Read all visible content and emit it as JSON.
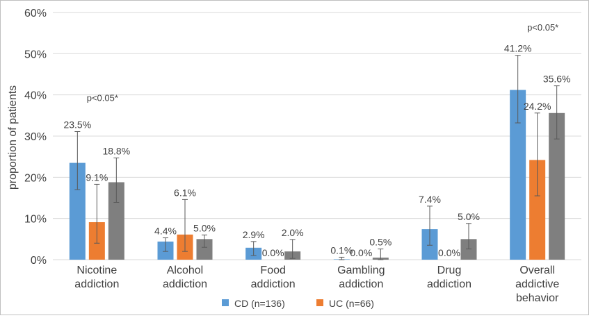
{
  "chart_data": {
    "type": "bar",
    "ylabel": "proportion of patients",
    "ylim": [
      0,
      60
    ],
    "y_ticks": [
      "0%",
      "10%",
      "20%",
      "30%",
      "40%",
      "50%",
      "60%"
    ],
    "y_tick_values": [
      0,
      10,
      20,
      30,
      40,
      50,
      60
    ],
    "grid": true,
    "categories": [
      [
        "Nicotine",
        "addiction"
      ],
      [
        "Alcohol",
        "addiction"
      ],
      [
        "Food",
        "addiction"
      ],
      [
        "Gambling",
        "addiction"
      ],
      [
        "Drug",
        "addiction"
      ],
      [
        "Overall",
        "addictive",
        "behavior"
      ]
    ],
    "series": [
      {
        "name": "CD (n=136)",
        "color": "#5b9bd5",
        "values": [
          23.5,
          4.4,
          2.9,
          0.1,
          7.4,
          41.2
        ],
        "labels": [
          "23.5%",
          "4.4%",
          "2.9%",
          "0.1%",
          "7.4%",
          "41.2%"
        ],
        "error_low": [
          17.0,
          2.0,
          1.0,
          0.0,
          3.5,
          33.2
        ],
        "error_high": [
          31.1,
          5.3,
          4.4,
          0.6,
          13.0,
          49.6
        ]
      },
      {
        "name": "UC (n=66)",
        "color": "#ed7d31",
        "values": [
          9.1,
          6.1,
          0.0,
          0.0,
          0.0,
          24.2
        ],
        "labels": [
          "9.1%",
          "6.1%",
          "0.0%",
          "0.0%",
          "0.0%",
          "24.2%"
        ],
        "error_low": [
          4.0,
          2.0,
          0.0,
          0.0,
          0.0,
          15.5
        ],
        "error_high": [
          18.3,
          14.6,
          0.0,
          0.0,
          0.0,
          35.6
        ]
      },
      {
        "name": "",
        "color": "#7f7f7f",
        "values": [
          18.8,
          5.0,
          2.0,
          0.5,
          5.0,
          35.6
        ],
        "labels": [
          "18.8%",
          "5.0%",
          "2.0%",
          "0.5%",
          "5.0%",
          "35.6%"
        ],
        "error_low": [
          13.9,
          3.0,
          0.3,
          0.0,
          2.6,
          29.3
        ],
        "error_high": [
          24.7,
          6.0,
          4.9,
          2.6,
          8.8,
          42.2
        ]
      }
    ],
    "annotations": [
      {
        "text": "p<0.05*",
        "category_index": 0,
        "value": 38.5
      },
      {
        "text": "p<0.05*",
        "category_index": 5,
        "value": 55.6
      }
    ],
    "legend": {
      "placement": "bottom",
      "entries": [
        "CD (n=136)",
        "UC (n=66)"
      ]
    }
  }
}
